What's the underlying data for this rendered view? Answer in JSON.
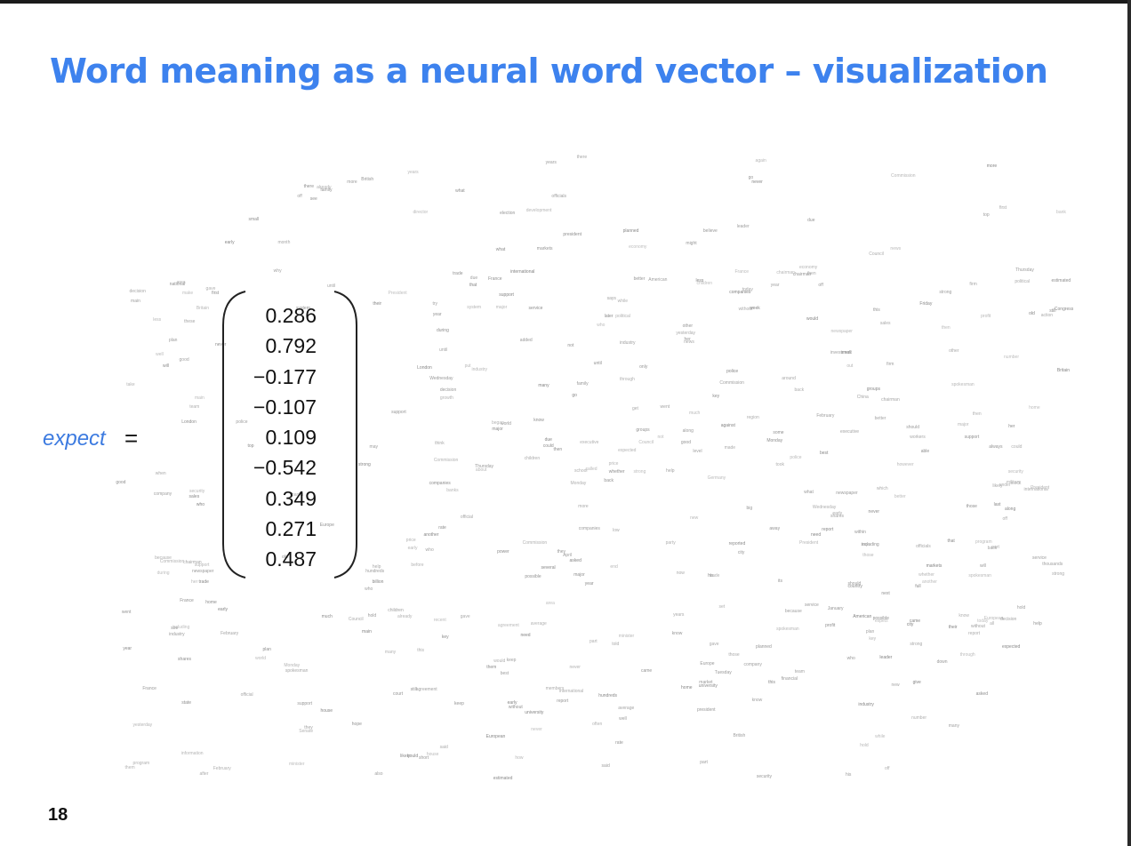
{
  "slide": {
    "title": "Word meaning as a neural word vector – visualization",
    "page_number": "18",
    "title_color": "#3d82ee"
  },
  "equation": {
    "word": "expect",
    "equals": "=",
    "vector": [
      "0.286",
      "0.792",
      "−0.177",
      "−0.107",
      "0.109",
      "−0.542",
      "0.349",
      "0.271",
      "0.487"
    ]
  },
  "scatter_words": [
    "France",
    "Germany",
    "Britain",
    "Japan",
    "London",
    "China",
    "Russia",
    "Europe",
    "European",
    "British",
    "American",
    "national",
    "international",
    "Washington",
    "Congress",
    "Commission",
    "Council",
    "Senate",
    "reporters",
    "president",
    "President",
    "minister",
    "chairman",
    "director",
    "executive",
    "official",
    "officials",
    "spokesman",
    "leader",
    "police",
    "military",
    "political",
    "government",
    "state",
    "court",
    "election",
    "public",
    "party",
    "security",
    "power",
    "market",
    "markets",
    "price",
    "prices",
    "trade",
    "trading",
    "industry",
    "economy",
    "economic",
    "financial",
    "business",
    "company",
    "companies",
    "firm",
    "bank",
    "banks",
    "money",
    "million",
    "billion",
    "percent",
    "stock",
    "shares",
    "sales",
    "profit",
    "growth",
    "production",
    "investment",
    "development",
    "information",
    "system",
    "service",
    "support",
    "program",
    "plan",
    "agreement",
    "talks",
    "action",
    "decision",
    "report",
    "news",
    "media",
    "newspaper",
    "people",
    "children",
    "women",
    "family",
    "members",
    "workers",
    "group",
    "groups",
    "team",
    "city",
    "country",
    "world",
    "region",
    "area",
    "home",
    "house",
    "school",
    "university",
    "January",
    "February",
    "March",
    "April",
    "Monday",
    "Tuesday",
    "Wednesday",
    "Thursday",
    "Friday",
    "Sunday",
    "week",
    "month",
    "year",
    "years",
    "time",
    "day",
    "days",
    "today",
    "yesterday",
    "early",
    "recent",
    "last",
    "first",
    "next",
    "later",
    "before",
    "after",
    "during",
    "since",
    "while",
    "until",
    "then",
    "now",
    "still",
    "already",
    "again",
    "never",
    "always",
    "often",
    "expected",
    "planned",
    "announced",
    "reported",
    "said",
    "says",
    "told",
    "added",
    "called",
    "asked",
    "continued",
    "began",
    "started",
    "made",
    "took",
    "gave",
    "came",
    "went",
    "put",
    "get",
    "make",
    "take",
    "give",
    "come",
    "go",
    "see",
    "know",
    "think",
    "want",
    "need",
    "help",
    "try",
    "keep",
    "hold",
    "bring",
    "seek",
    "expect",
    "believe",
    "hope",
    "could",
    "would",
    "should",
    "might",
    "must",
    "will",
    "can",
    "may",
    "not",
    "only",
    "also",
    "very",
    "more",
    "most",
    "less",
    "much",
    "many",
    "some",
    "several",
    "few",
    "other",
    "another",
    "each",
    "every",
    "all",
    "both",
    "such",
    "same",
    "new",
    "old",
    "large",
    "small",
    "high",
    "low",
    "long",
    "short",
    "good",
    "well",
    "best",
    "better",
    "major",
    "key",
    "main",
    "big",
    "top",
    "full",
    "strong",
    "including",
    "through",
    "against",
    "between",
    "among",
    "within",
    "without",
    "under",
    "over",
    "around",
    "about",
    "across",
    "along",
    "following",
    "because",
    "although",
    "however",
    "whether",
    "where",
    "when",
    "what",
    "which",
    "who",
    "how",
    "why",
    "there",
    "here",
    "this",
    "that",
    "these",
    "those",
    "they",
    "them",
    "their",
    "its",
    "his",
    "her",
    "our",
    "your",
    "said",
    "told",
    "thousands",
    "hundreds",
    "half",
    "part",
    "end",
    "number",
    "level",
    "rate",
    "rates",
    "cost",
    "costs",
    "value",
    "total",
    "average",
    "estimated",
    "likely",
    "possible",
    "able",
    "due",
    "set",
    "back",
    "down",
    "off",
    "out",
    "up",
    "away"
  ]
}
